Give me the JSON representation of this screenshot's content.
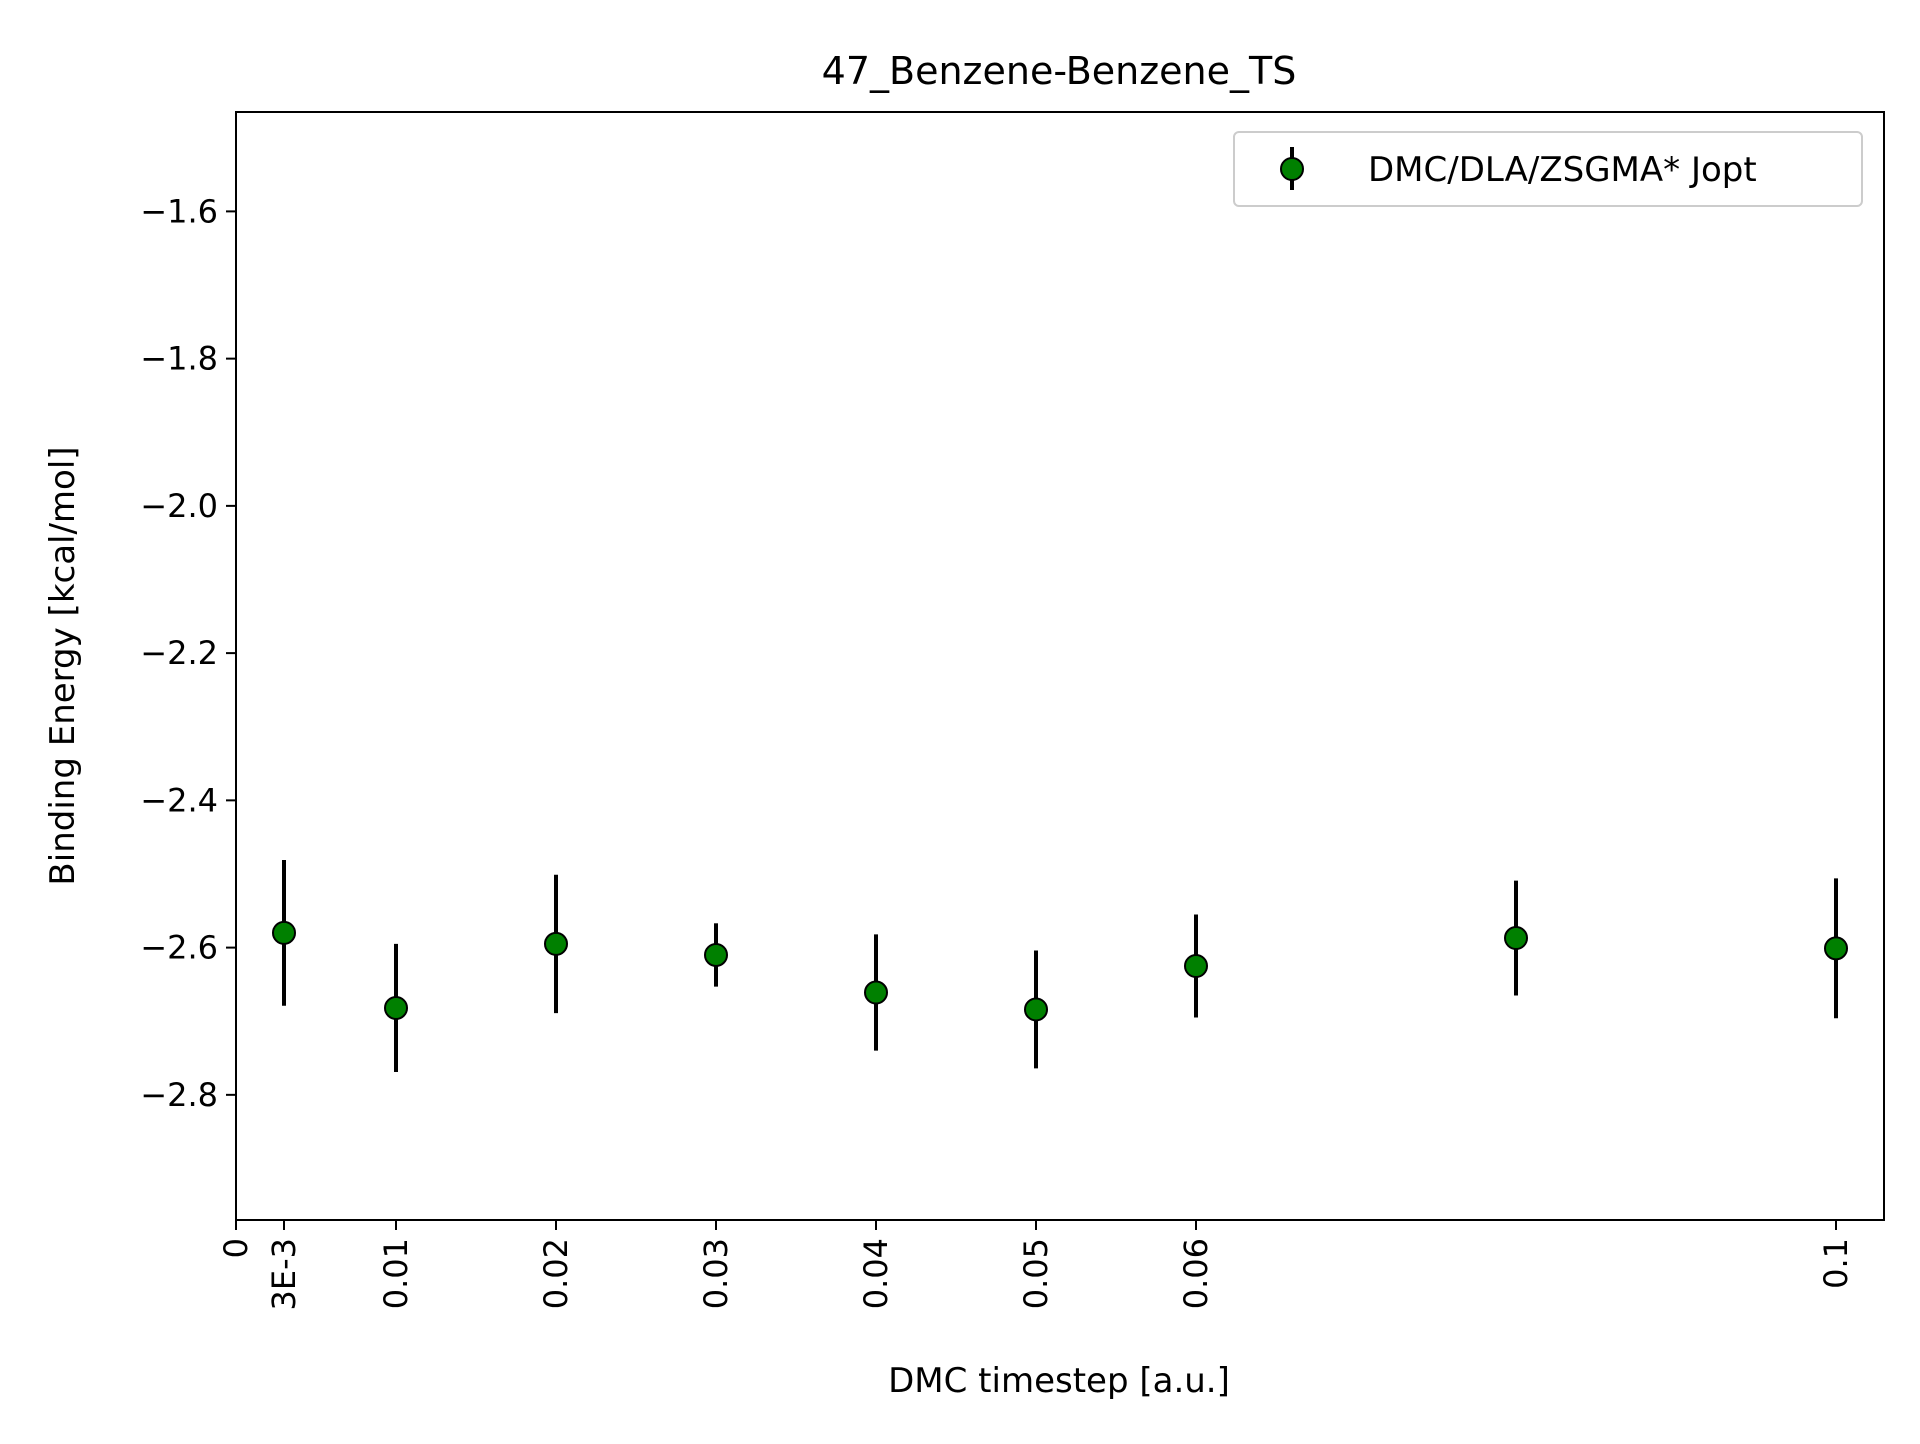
{
  "chart_data": {
    "type": "scatter",
    "title": "47_Benzene-Benzene_TS",
    "xlabel": "DMC timestep [a.u.]",
    "ylabel": "Binding Energy [kcal/mol]",
    "xlim": [
      0,
      0.103
    ],
    "ylim": [
      -2.97,
      -1.465
    ],
    "x_ticks": [
      {
        "value": 0,
        "label": "0"
      },
      {
        "value": 0.003,
        "label": "3E-3"
      },
      {
        "value": 0.01,
        "label": "0.01"
      },
      {
        "value": 0.02,
        "label": "0.02"
      },
      {
        "value": 0.03,
        "label": "0.03"
      },
      {
        "value": 0.04,
        "label": "0.04"
      },
      {
        "value": 0.05,
        "label": "0.05"
      },
      {
        "value": 0.06,
        "label": "0.06"
      },
      {
        "value": 0.1,
        "label": "0.1"
      }
    ],
    "y_ticks": [
      {
        "value": -1.6,
        "label": "−1.6"
      },
      {
        "value": -1.8,
        "label": "−1.8"
      },
      {
        "value": -2.0,
        "label": "−2.0"
      },
      {
        "value": -2.2,
        "label": "−2.2"
      },
      {
        "value": -2.4,
        "label": "−2.4"
      },
      {
        "value": -2.6,
        "label": "−2.6"
      },
      {
        "value": -2.8,
        "label": "−2.8"
      }
    ],
    "grid": false,
    "legend_position": "top-right",
    "series": [
      {
        "name": "DMC/DLA/ZSGMA* Jopt",
        "marker_color": "#008000",
        "edge_color": "#000000",
        "errorbar_color": "#000000",
        "points": [
          {
            "x": 0.003,
            "y": -2.58,
            "err": 0.099
          },
          {
            "x": 0.01,
            "y": -2.682,
            "err": 0.087
          },
          {
            "x": 0.02,
            "y": -2.595,
            "err": 0.094
          },
          {
            "x": 0.03,
            "y": -2.61,
            "err": 0.043
          },
          {
            "x": 0.04,
            "y": -2.661,
            "err": 0.079
          },
          {
            "x": 0.05,
            "y": -2.684,
            "err": 0.08
          },
          {
            "x": 0.06,
            "y": -2.625,
            "err": 0.07
          },
          {
            "x": 0.08,
            "y": -2.587,
            "err": 0.078
          },
          {
            "x": 0.1,
            "y": -2.601,
            "err": 0.095
          }
        ]
      }
    ]
  }
}
